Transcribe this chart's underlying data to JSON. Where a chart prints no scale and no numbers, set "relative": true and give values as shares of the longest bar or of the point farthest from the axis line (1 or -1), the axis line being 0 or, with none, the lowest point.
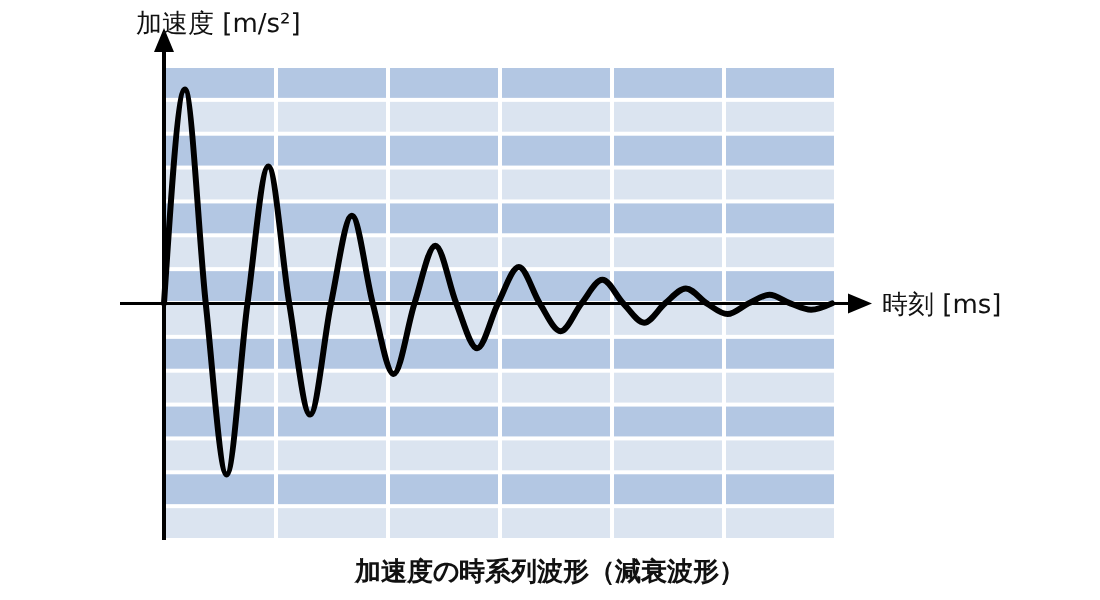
{
  "chart_data": {
    "type": "line",
    "title": "加速度の時系列波形（減衰波形）",
    "xlabel": "時刻 [ms]",
    "ylabel": "加速度 [m/s²]",
    "relative": true,
    "categories": [
      null,
      null,
      null,
      null,
      null,
      null,
      null,
      null,
      null,
      null,
      null,
      null,
      null,
      null,
      null,
      null,
      null,
      null,
      null,
      null,
      null,
      null,
      null,
      null,
      null,
      null,
      null,
      null,
      null,
      null,
      null,
      null,
      null
    ],
    "series": [
      {
        "color": "#000000",
        "values": [
          0,
          1.0,
          0,
          -0.8,
          0,
          0.64,
          0,
          -0.52,
          0,
          0.41,
          0,
          -0.33,
          0,
          0.27,
          0,
          -0.21,
          0,
          0.17,
          0,
          -0.13,
          0,
          0.11,
          0,
          -0.09,
          0,
          0.07,
          0,
          -0.05,
          0,
          0.04,
          0,
          -0.03,
          0
        ]
      }
    ]
  }
}
